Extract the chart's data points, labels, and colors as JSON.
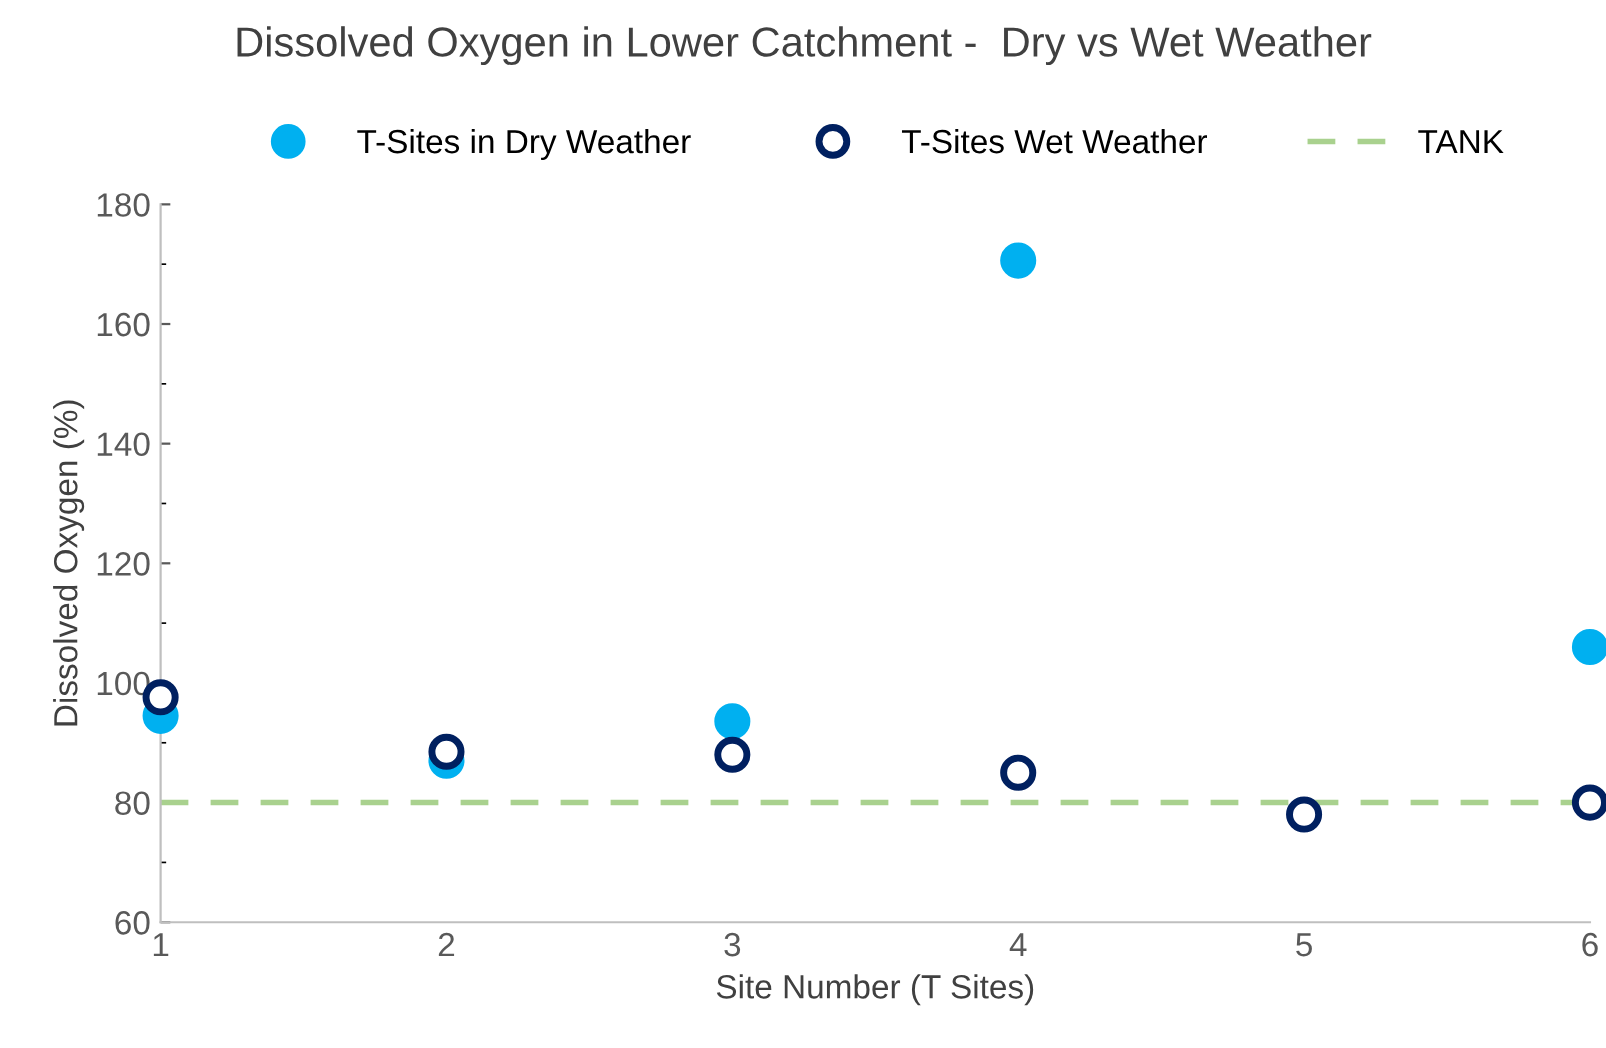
{
  "chart_data": {
    "type": "scatter",
    "title": "Dissolved Oxygen in Lower Catchment -  Dry vs Wet Weather",
    "xlabel": "Site Number (T Sites)",
    "ylabel": "Dissolved Oxygen (%)",
    "x": [
      1,
      2,
      3,
      4,
      5,
      6
    ],
    "series": [
      {
        "name": "T-Sites in Dry Weather",
        "color": "#00b0f0",
        "marker": "circle",
        "values": [
          94.5,
          87,
          93.6,
          170.6,
          null,
          106
        ]
      },
      {
        "name": "T-Sites Wet Weather",
        "color": "#002060",
        "marker": "open circle",
        "values": [
          97.6,
          88.5,
          88,
          85,
          78,
          80
        ]
      }
    ],
    "ref_lines": [
      {
        "axis": "y",
        "value": 80,
        "label": "TANK",
        "color": "#a9d18e",
        "line_style": "dashed"
      }
    ],
    "xlim": [
      1,
      6
    ],
    "xticks": [
      1,
      2,
      3,
      4,
      5,
      6
    ],
    "ylim": [
      60,
      180
    ],
    "yticks": [
      60,
      80,
      100,
      120,
      140,
      160,
      180
    ],
    "grid": false,
    "legend": "top"
  }
}
